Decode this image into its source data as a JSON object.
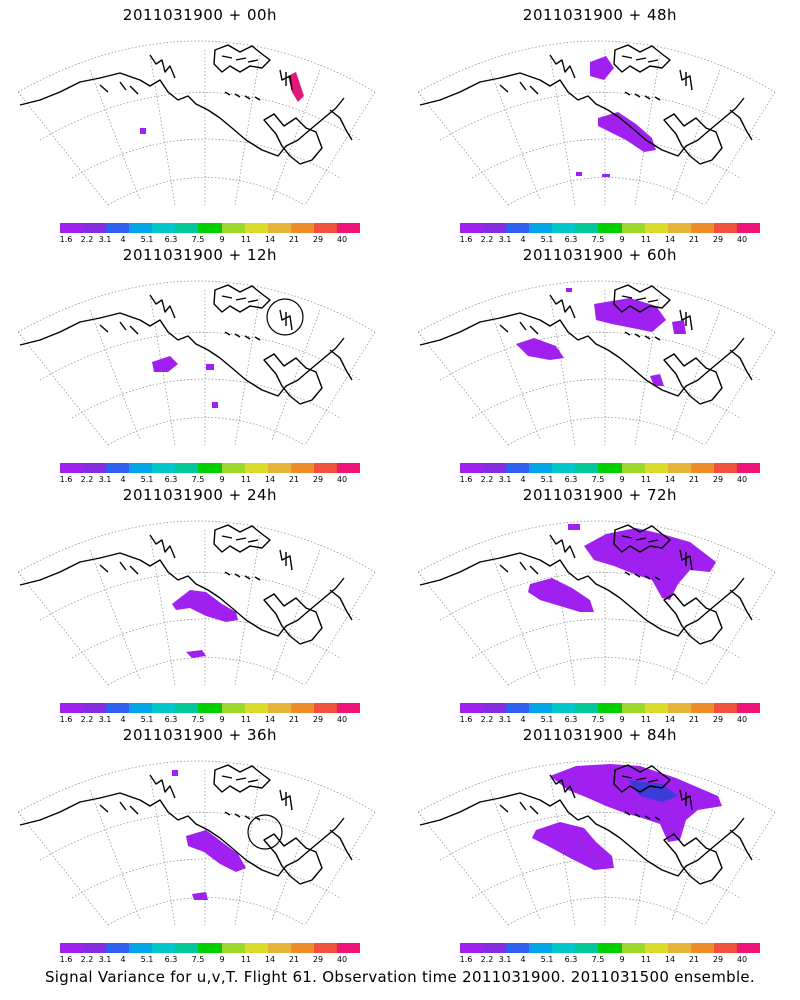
{
  "panels": [
    {
      "id": "p00",
      "title": "2011031900 + 00h"
    },
    {
      "id": "p48",
      "title": "2011031900 + 48h"
    },
    {
      "id": "p12",
      "title": "2011031900 + 12h"
    },
    {
      "id": "p60",
      "title": "2011031900 + 60h"
    },
    {
      "id": "p24",
      "title": "2011031900 + 24h"
    },
    {
      "id": "p72",
      "title": "2011031900 + 72h"
    },
    {
      "id": "p36",
      "title": "2011031900 + 36h"
    },
    {
      "id": "p84",
      "title": "2011031900 + 84h"
    }
  ],
  "colorbar": {
    "colors": [
      "#a020f0",
      "#8a2be2",
      "#3060f0",
      "#00a6e8",
      "#00c8c8",
      "#00c896",
      "#00d000",
      "#9ad82a",
      "#dcdc2a",
      "#e6b43a",
      "#f08c28",
      "#f0503c",
      "#f01478"
    ],
    "labels": [
      "1.6",
      "2.2",
      "3.1",
      "4",
      "5.1",
      "6.3",
      "7.5",
      "9",
      "11",
      "14",
      "21",
      "29",
      "40"
    ]
  },
  "footer": "Signal Variance for u,v,T. Flight 61. Observation time 2011031900. 2011031500 ensemble."
}
